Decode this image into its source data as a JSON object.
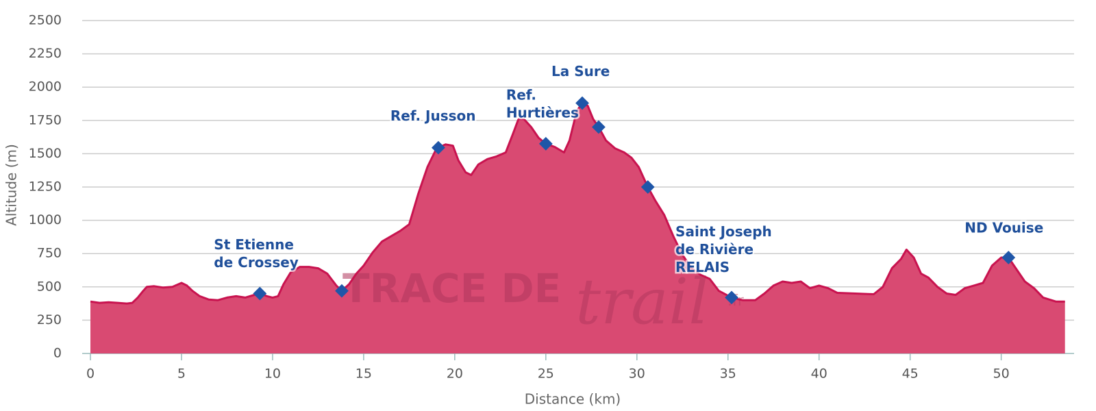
{
  "chart_data": {
    "type": "area",
    "x_label": "Distance (km)",
    "y_label": "Altitude (m)",
    "xlim": [
      0,
      54
    ],
    "xticks": [
      0,
      5,
      10,
      15,
      20,
      25,
      30,
      35,
      40,
      45,
      50
    ],
    "ylim": [
      0,
      2500
    ],
    "yticks": [
      0,
      250,
      500,
      750,
      1000,
      1250,
      1500,
      1750,
      2000,
      2250,
      2500
    ],
    "grid": true,
    "color": "#d94a72",
    "line_color": "#c8134f",
    "marker_color": "#1f56a8",
    "watermark": [
      "TRACE DE",
      "trail",
      ".fr"
    ],
    "x": [
      0,
      0.5,
      1,
      1.5,
      2,
      2.3,
      2.6,
      2.9,
      3.1,
      3.5,
      4,
      4.5,
      5,
      5.3,
      5.6,
      6,
      6.5,
      7,
      7.5,
      8,
      8.5,
      9,
      9.3,
      9.7,
      10,
      10.3,
      10.6,
      11,
      11.5,
      12,
      12.5,
      13,
      13.5,
      13.8,
      14.2,
      14.6,
      15,
      15.5,
      16,
      16.5,
      17,
      17.5,
      18,
      18.5,
      19,
      19.5,
      19.9,
      20.2,
      20.6,
      20.9,
      21.3,
      21.8,
      22.3,
      22.8,
      23.2,
      23.5,
      23.8,
      24.2,
      24.6,
      25,
      25.5,
      26,
      26.3,
      26.7,
      27,
      27.3,
      27.6,
      27.9,
      28.3,
      28.8,
      29.3,
      29.7,
      30.1,
      30.6,
      31,
      31.5,
      32,
      32.5,
      33,
      33.5,
      34,
      34.5,
      35.2,
      35.8,
      36.5,
      37,
      37.5,
      38,
      38.5,
      39,
      39.5,
      40,
      40.5,
      41,
      42,
      43,
      43.5,
      44,
      44.5,
      44.8,
      45.2,
      45.6,
      46,
      46.5,
      47,
      47.5,
      48,
      48.5,
      49,
      49.5,
      50,
      50.4,
      50.8,
      51.3,
      51.8,
      52.3,
      53,
      53.5
    ],
    "values": [
      390,
      380,
      385,
      380,
      375,
      380,
      420,
      470,
      500,
      505,
      495,
      500,
      530,
      510,
      470,
      430,
      405,
      400,
      420,
      430,
      420,
      440,
      450,
      430,
      420,
      430,
      520,
      610,
      650,
      650,
      640,
      600,
      510,
      470,
      520,
      600,
      660,
      760,
      840,
      880,
      920,
      970,
      1200,
      1400,
      1540,
      1570,
      1560,
      1450,
      1360,
      1340,
      1420,
      1460,
      1480,
      1510,
      1650,
      1760,
      1760,
      1700,
      1620,
      1575,
      1550,
      1510,
      1600,
      1820,
      1880,
      1860,
      1760,
      1700,
      1600,
      1540,
      1510,
      1470,
      1400,
      1250,
      1150,
      1040,
      880,
      740,
      640,
      590,
      560,
      470,
      420,
      400,
      400,
      450,
      510,
      540,
      530,
      540,
      490,
      510,
      490,
      455,
      450,
      445,
      500,
      640,
      710,
      780,
      720,
      600,
      570,
      500,
      450,
      440,
      490,
      510,
      530,
      660,
      720,
      720,
      640,
      540,
      490,
      420,
      390,
      390
    ],
    "waypoints": [
      {
        "x": 9.3,
        "y": 450,
        "label": [
          "St Etienne",
          "de Crossey"
        ]
      },
      {
        "x": 13.8,
        "y": 470,
        "label": null
      },
      {
        "x": 19.1,
        "y": 1545,
        "label": [
          "Ref. Jusson"
        ]
      },
      {
        "x": 25,
        "y": 1575,
        "label": [
          "Ref.",
          "Hurtières"
        ]
      },
      {
        "x": 27,
        "y": 1880,
        "label": [
          "La Sure"
        ]
      },
      {
        "x": 27.9,
        "y": 1700,
        "label": null
      },
      {
        "x": 30.6,
        "y": 1250,
        "label": null
      },
      {
        "x": 35.2,
        "y": 420,
        "label": [
          "Saint Joseph",
          "de Rivière",
          "RELAIS"
        ]
      },
      {
        "x": 50.4,
        "y": 720,
        "label": [
          "ND Vouise"
        ]
      }
    ]
  }
}
